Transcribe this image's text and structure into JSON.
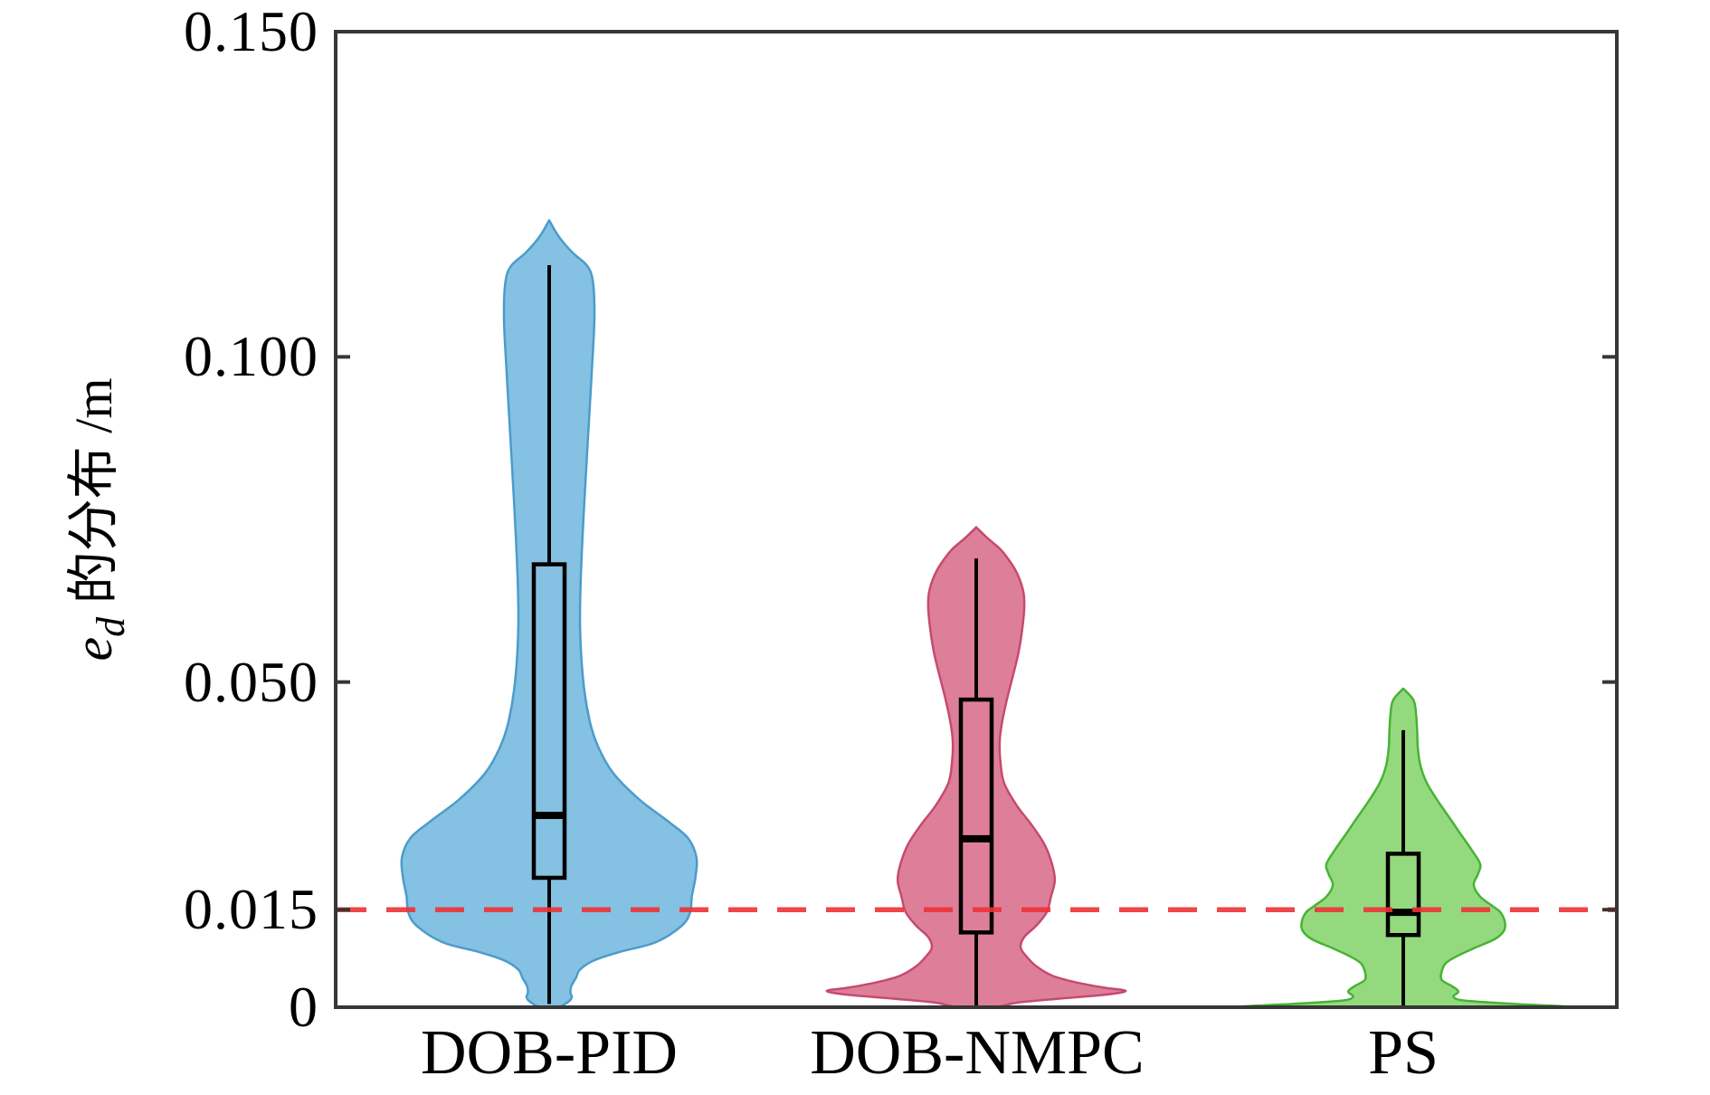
{
  "figure": {
    "ylabel": {
      "variable": "e",
      "subscript": "d",
      "text": " 的分布 ",
      "unit": "/m"
    }
  },
  "chart_data": {
    "type": "violin",
    "title": "",
    "xlabel": "",
    "ylabel": "e_d 的分布 /m",
    "categories": [
      "DOB-PID",
      "DOB-NMPC",
      "PS"
    ],
    "ylim": [
      0,
      0.15
    ],
    "yticks": [
      {
        "value": 0.0,
        "label": "0"
      },
      {
        "value": 0.015,
        "label": "0.015"
      },
      {
        "value": 0.05,
        "label": "0.050"
      },
      {
        "value": 0.1,
        "label": "0.100"
      },
      {
        "value": 0.15,
        "label": "0.150"
      }
    ],
    "grid": false,
    "legend": "none",
    "axis_color": "#363636",
    "reference_line": {
      "value": 0.015,
      "color": "#ee3336",
      "opacity": 0.9,
      "style": "dashed"
    },
    "series": [
      {
        "name": "DOB-PID",
        "fill": "#85c1e2",
        "edge": "#4b9ccb",
        "box": {
          "whisker_low": 0.0005,
          "q1": 0.0199,
          "median": 0.0295,
          "q3": 0.0681,
          "whisker_high": 0.1141
        },
        "profile": [
          [
            0.121,
            0.0
          ],
          [
            0.1185,
            0.045
          ],
          [
            0.116,
            0.11
          ],
          [
            0.114,
            0.178
          ],
          [
            0.1115,
            0.205
          ],
          [
            0.106,
            0.212
          ],
          [
            0.098,
            0.2
          ],
          [
            0.09,
            0.186
          ],
          [
            0.082,
            0.172
          ],
          [
            0.073,
            0.157
          ],
          [
            0.065,
            0.147
          ],
          [
            0.058,
            0.145
          ],
          [
            0.05,
            0.16
          ],
          [
            0.044,
            0.19
          ],
          [
            0.04,
            0.23
          ],
          [
            0.036,
            0.3
          ],
          [
            0.032,
            0.42
          ],
          [
            0.0285,
            0.56
          ],
          [
            0.026,
            0.65
          ],
          [
            0.023,
            0.69
          ],
          [
            0.02,
            0.685
          ],
          [
            0.017,
            0.668
          ],
          [
            0.0146,
            0.66
          ],
          [
            0.0125,
            0.62
          ],
          [
            0.01,
            0.5
          ],
          [
            0.0085,
            0.33
          ],
          [
            0.0072,
            0.21
          ],
          [
            0.0058,
            0.145
          ],
          [
            0.0045,
            0.125
          ],
          [
            0.0032,
            0.103
          ],
          [
            0.0022,
            0.1
          ],
          [
            0.0015,
            0.106
          ],
          [
            0.0008,
            0.088
          ],
          [
            0.0,
            0.04
          ]
        ]
      },
      {
        "name": "DOB-NMPC",
        "fill": "#de7f9a",
        "edge": "#c64a70",
        "box": {
          "whisker_low": 0.0,
          "q1": 0.0115,
          "median": 0.0259,
          "q3": 0.0473,
          "whisker_high": 0.069
        },
        "profile": [
          [
            0.0738,
            0.0
          ],
          [
            0.0722,
            0.05
          ],
          [
            0.0705,
            0.11
          ],
          [
            0.069,
            0.148
          ],
          [
            0.0668,
            0.19
          ],
          [
            0.064,
            0.22
          ],
          [
            0.0615,
            0.225
          ],
          [
            0.058,
            0.215
          ],
          [
            0.0545,
            0.198
          ],
          [
            0.051,
            0.172
          ],
          [
            0.0475,
            0.145
          ],
          [
            0.044,
            0.122
          ],
          [
            0.041,
            0.11
          ],
          [
            0.0378,
            0.113
          ],
          [
            0.0345,
            0.13
          ],
          [
            0.031,
            0.19
          ],
          [
            0.028,
            0.26
          ],
          [
            0.025,
            0.32
          ],
          [
            0.022,
            0.355
          ],
          [
            0.0195,
            0.368
          ],
          [
            0.017,
            0.35
          ],
          [
            0.0146,
            0.33
          ],
          [
            0.0125,
            0.28
          ],
          [
            0.0108,
            0.225
          ],
          [
            0.0092,
            0.208
          ],
          [
            0.0078,
            0.235
          ],
          [
            0.0062,
            0.285
          ],
          [
            0.0048,
            0.36
          ],
          [
            0.0038,
            0.47
          ],
          [
            0.003,
            0.6
          ],
          [
            0.0025,
            0.7
          ],
          [
            0.0019,
            0.6
          ],
          [
            0.0013,
            0.38
          ],
          [
            0.0007,
            0.19
          ],
          [
            0.0,
            0.085
          ]
        ]
      },
      {
        "name": "PS",
        "fill": "#95d97e",
        "edge": "#47b335",
        "box": {
          "whisker_low": 0.0,
          "q1": 0.0111,
          "median": 0.0146,
          "q3": 0.0236,
          "whisker_high": 0.0426
        },
        "profile": [
          [
            0.049,
            0.0
          ],
          [
            0.0472,
            0.048
          ],
          [
            0.045,
            0.06
          ],
          [
            0.0425,
            0.065
          ],
          [
            0.04,
            0.068
          ],
          [
            0.0372,
            0.08
          ],
          [
            0.0345,
            0.11
          ],
          [
            0.0318,
            0.16
          ],
          [
            0.0292,
            0.215
          ],
          [
            0.0268,
            0.265
          ],
          [
            0.0242,
            0.32
          ],
          [
            0.022,
            0.36
          ],
          [
            0.0205,
            0.35
          ],
          [
            0.0188,
            0.33
          ],
          [
            0.017,
            0.36
          ],
          [
            0.0155,
            0.42
          ],
          [
            0.0146,
            0.455
          ],
          [
            0.0132,
            0.475
          ],
          [
            0.0118,
            0.472
          ],
          [
            0.0105,
            0.43
          ],
          [
            0.0092,
            0.34
          ],
          [
            0.008,
            0.26
          ],
          [
            0.0068,
            0.2
          ],
          [
            0.0055,
            0.18
          ],
          [
            0.0042,
            0.18
          ],
          [
            0.0032,
            0.23
          ],
          [
            0.0024,
            0.258
          ],
          [
            0.0016,
            0.235
          ],
          [
            0.001,
            0.29
          ],
          [
            0.0005,
            0.52
          ],
          [
            0.0,
            0.69
          ]
        ]
      }
    ]
  }
}
